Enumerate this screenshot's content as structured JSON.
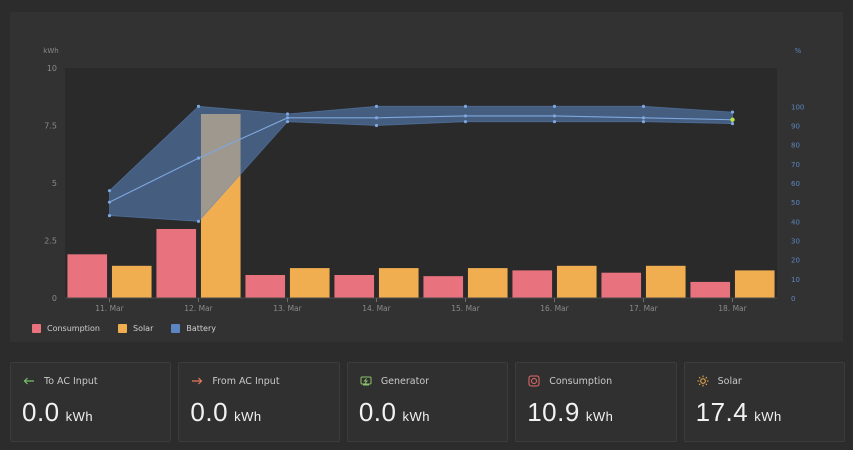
{
  "chart_data": {
    "type": "bar",
    "categories": [
      "11. Mar",
      "12. Mar",
      "13. Mar",
      "14. Mar",
      "15. Mar",
      "16. Mar",
      "17. Mar",
      "18. Mar"
    ],
    "ylabel_left": "kWh",
    "ylabel_right": "%",
    "ylim_left": [
      0,
      10
    ],
    "yticks_left": [
      "0",
      "2.5",
      "5",
      "7.5",
      "10"
    ],
    "ylim_right": [
      0,
      120
    ],
    "yticks_right": [
      "0",
      "10",
      "20",
      "30",
      "40",
      "50",
      "60",
      "70",
      "80",
      "90",
      "100"
    ],
    "series": [
      {
        "name": "Consumption",
        "color": "#e8737e",
        "values": [
          1.9,
          3.0,
          1.0,
          1.0,
          0.95,
          1.2,
          1.1,
          0.7
        ]
      },
      {
        "name": "Solar",
        "color": "#f0ae50",
        "values": [
          1.4,
          8.0,
          1.3,
          1.3,
          1.3,
          1.4,
          1.4,
          1.2
        ]
      }
    ],
    "battery": {
      "name": "Battery",
      "color": "#5b86c2",
      "avg": [
        50,
        73,
        94,
        94,
        95,
        95,
        94,
        93
      ],
      "min": [
        43,
        40,
        92,
        90,
        92,
        92,
        92,
        91
      ],
      "max": [
        56,
        100,
        96,
        100,
        100,
        100,
        100,
        97
      ]
    },
    "grid": true,
    "legend": "bottom-left"
  },
  "legend": [
    {
      "label": "Consumption",
      "color": "#e8737e"
    },
    {
      "label": "Solar",
      "color": "#f0ae50"
    },
    {
      "label": "Battery",
      "color": "#5b86c2"
    }
  ],
  "cards": [
    {
      "icon": "arrow-left-icon",
      "icon_color": "#77c06a",
      "label": "To AC Input",
      "value": "0.0",
      "unit": "kWh"
    },
    {
      "icon": "arrow-right-icon",
      "icon_color": "#e87a5a",
      "label": "From AC Input",
      "value": "0.0",
      "unit": "kWh"
    },
    {
      "icon": "generator-icon",
      "icon_color": "#8cc26a",
      "label": "Generator",
      "value": "0.0",
      "unit": "kWh"
    },
    {
      "icon": "consumption-icon",
      "icon_color": "#e86a6a",
      "label": "Consumption",
      "value": "10.9",
      "unit": "kWh"
    },
    {
      "icon": "sun-icon",
      "icon_color": "#f0ae50",
      "label": "Solar",
      "value": "17.4",
      "unit": "kWh"
    }
  ]
}
